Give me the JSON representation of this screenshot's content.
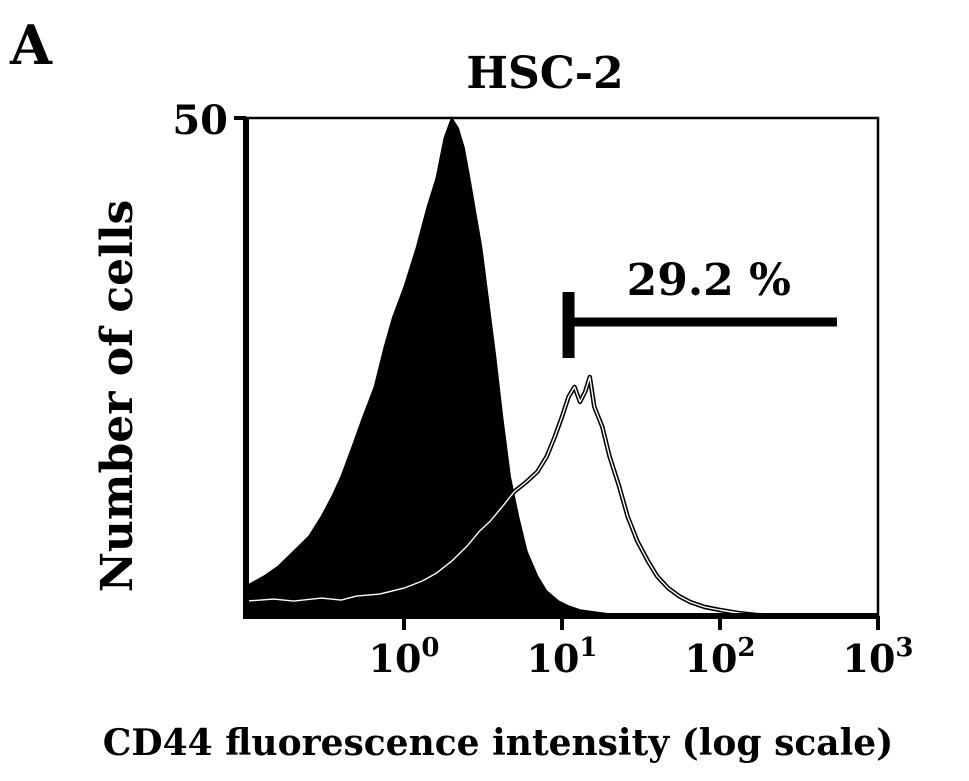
{
  "figure": {
    "panel_label": "A"
  },
  "chart_data": {
    "type": "area",
    "title": "HSC-2",
    "xlabel": "CD44 fluorescence intensity (log scale)",
    "ylabel": "Number of cells",
    "x_scale": "log",
    "xlim": [
      0.1,
      1000
    ],
    "ylim": [
      0,
      50
    ],
    "x_ticks": [
      {
        "base": "10",
        "exp": "0",
        "value": 1
      },
      {
        "base": "10",
        "exp": "1",
        "value": 10
      },
      {
        "base": "10",
        "exp": "2",
        "value": 100
      },
      {
        "base": "10",
        "exp": "3",
        "value": 1000
      }
    ],
    "y_ticks": [
      {
        "label": "50",
        "value": 50
      }
    ],
    "grid": false,
    "series": [
      {
        "style": "filled-black",
        "x": [
          0.1,
          0.13,
          0.16,
          0.2,
          0.25,
          0.3,
          0.35,
          0.4,
          0.47,
          0.55,
          0.65,
          0.75,
          0.85,
          1.0,
          1.2,
          1.4,
          1.6,
          1.8,
          2.0,
          2.2,
          2.4,
          2.6,
          2.8,
          3.1,
          3.4,
          3.8,
          4.2,
          4.7,
          5.3,
          6.0,
          7.0,
          8.0,
          9.5,
          11,
          13,
          16,
          20,
          25,
          30
        ],
        "y": [
          3,
          4,
          5,
          6.5,
          8,
          10,
          12,
          14,
          17,
          20,
          23,
          27,
          30,
          33,
          37,
          41,
          44,
          48,
          50,
          49,
          47,
          44,
          41,
          37,
          32,
          26,
          20,
          14,
          10,
          6.5,
          4,
          2.5,
          1.5,
          1,
          0.6,
          0.4,
          0.2,
          0.1,
          0
        ]
      },
      {
        "style": "outline",
        "x": [
          0.1,
          0.15,
          0.2,
          0.3,
          0.4,
          0.5,
          0.7,
          1.0,
          1.3,
          1.6,
          2.0,
          2.5,
          3.0,
          3.5,
          4.2,
          5.0,
          6.0,
          7.0,
          8.0,
          9.0,
          10,
          11,
          12,
          13,
          14,
          15,
          16,
          18,
          20,
          23,
          26,
          30,
          35,
          40,
          47,
          55,
          65,
          80,
          100,
          130,
          170,
          250
        ],
        "y": [
          1.5,
          1.7,
          1.5,
          1.8,
          1.6,
          2.0,
          2.2,
          2.8,
          3.5,
          4.3,
          5.5,
          7,
          8.5,
          9.5,
          11,
          12.5,
          13.5,
          14.5,
          16,
          18,
          20,
          22,
          23,
          21.5,
          22.5,
          24,
          21,
          19,
          16,
          13,
          10,
          7.5,
          5.5,
          4,
          2.8,
          2,
          1.4,
          0.9,
          0.6,
          0.3,
          0.1,
          0
        ]
      }
    ],
    "annotations": [
      {
        "text": "29.2 %",
        "type": "gate-bar",
        "x_start": 11,
        "x_end": 550
      }
    ]
  }
}
